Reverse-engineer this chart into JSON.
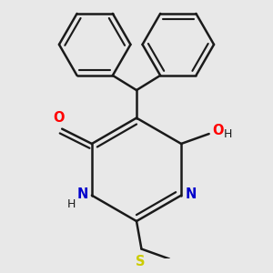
{
  "bg_color": "#e8e8e8",
  "bond_color": "#1a1a1a",
  "bond_width": 1.8,
  "dbo": 0.055,
  "atom_colors": {
    "O": "#ff0000",
    "N": "#0000cc",
    "S": "#cccc00",
    "H": "#1a1a1a"
  },
  "font_size": 10.5,
  "font_size_small": 9.0
}
